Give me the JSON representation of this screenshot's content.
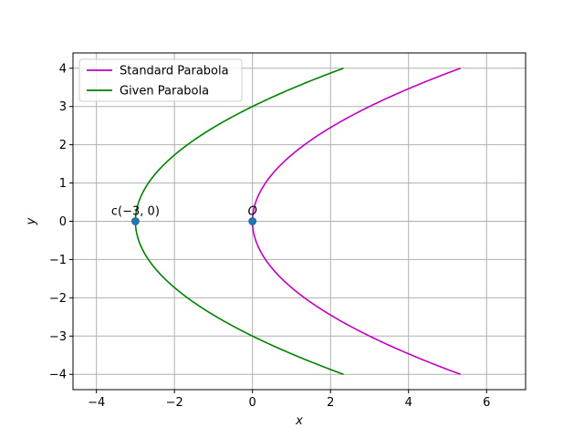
{
  "chart_data": {
    "type": "line",
    "title": "",
    "xlabel": "x",
    "ylabel": "y",
    "xlim": [
      -4.6,
      7.0
    ],
    "ylim": [
      -4.4,
      4.4
    ],
    "xticks": [
      -4,
      -2,
      0,
      2,
      4,
      6
    ],
    "yticks": [
      -4,
      -3,
      -2,
      -1,
      0,
      1,
      2,
      3,
      4
    ],
    "grid": true,
    "legend_position": "top-left",
    "series": [
      {
        "name": "Standard Parabola",
        "color": "#bf00bf",
        "equation": "x = y^2/3",
        "y_range": [
          -4,
          4
        ]
      },
      {
        "name": "Given Parabola",
        "color": "#008000",
        "equation": "x = y^2/3 - 3",
        "y_range": [
          -4,
          4
        ]
      }
    ],
    "points": [
      {
        "x": -3,
        "y": 0,
        "label": "c(−3, 0)",
        "color": "#1f77b4"
      },
      {
        "x": 0,
        "y": 0,
        "label": "O",
        "color": "#1f77b4"
      }
    ]
  }
}
